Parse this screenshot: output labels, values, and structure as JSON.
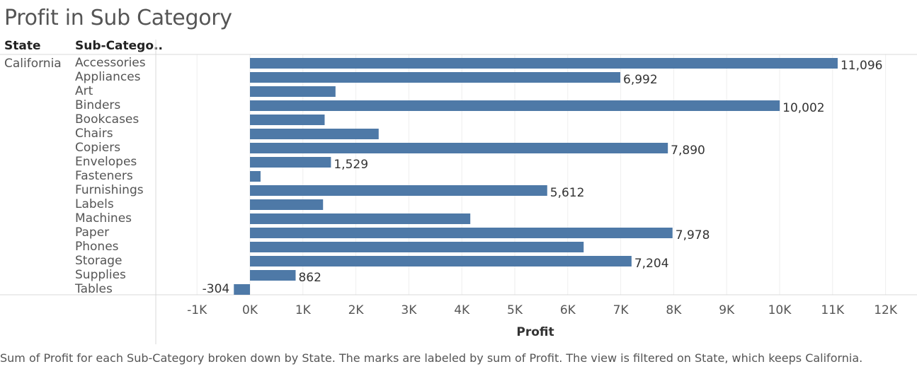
{
  "header": {
    "title": "Profit in Sub Category",
    "state_col": "State",
    "subcat_col": "Sub-Catego..",
    "state_value": "California"
  },
  "caption": "Sum of Profit for each Sub-Category broken down by State.  The marks are labeled by sum of Profit. The view is filtered on State, which keeps California.",
  "colors": {
    "bar": "#4e79a7",
    "grid": "#eeeeee",
    "divider": "#d9d9d9"
  },
  "chart_data": {
    "type": "bar",
    "orientation": "horizontal",
    "title": "Profit in Sub Category",
    "xlabel": "Profit",
    "ylabel": "Sub-Catego..",
    "xlim": [
      -1500,
      12200
    ],
    "grid": true,
    "x_ticks": [
      -1000,
      0,
      1000,
      2000,
      3000,
      4000,
      5000,
      6000,
      7000,
      8000,
      9000,
      10000,
      11000,
      12000
    ],
    "x_tick_labels": [
      "-1K",
      "0K",
      "1K",
      "2K",
      "3K",
      "4K",
      "5K",
      "6K",
      "7K",
      "8K",
      "9K",
      "10K",
      "11K",
      "12K"
    ],
    "categories": [
      "Accessories",
      "Appliances",
      "Art",
      "Binders",
      "Bookcases",
      "Chairs",
      "Copiers",
      "Envelopes",
      "Fasteners",
      "Furnishings",
      "Labels",
      "Machines",
      "Paper",
      "Phones",
      "Storage",
      "Supplies",
      "Tables"
    ],
    "values": [
      11096,
      6992,
      1615,
      10002,
      1410,
      2430,
      7890,
      1529,
      200,
      5612,
      1380,
      4160,
      7978,
      6300,
      7204,
      862,
      -304
    ],
    "data_labels": [
      "11,096",
      "6,992",
      "",
      "10,002",
      "",
      "",
      "7,890",
      "1,529",
      "",
      "5,612",
      "",
      "",
      "7,978",
      "",
      "7,204",
      "862",
      "-304"
    ]
  }
}
